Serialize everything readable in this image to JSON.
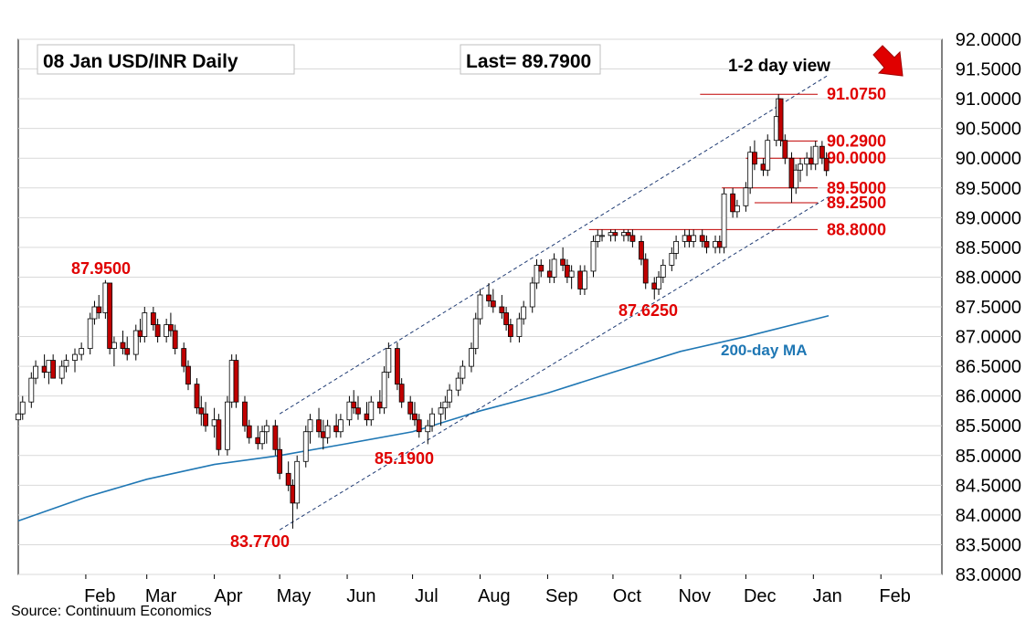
{
  "chart_data": {
    "type": "candlestick",
    "title_box": "08 Jan  USD/INR  Daily",
    "last_box": "Last= 89.7900",
    "view_label": "1-2 day view",
    "view_arrow": "down-right-arrow",
    "source": "Source: Continuum Economics",
    "y_ticks": [
      "92.0000",
      "91.5000",
      "91.0000",
      "90.5000",
      "90.0000",
      "89.5000",
      "89.0000",
      "88.5000",
      "88.0000",
      "87.5000",
      "87.0000",
      "86.5000",
      "86.0000",
      "85.5000",
      "85.0000",
      "84.5000",
      "84.0000",
      "83.5000",
      "83.0000"
    ],
    "ylim": [
      83.0,
      92.0
    ],
    "x_months": [
      "Feb",
      "Mar",
      "Apr",
      "May",
      "Jun",
      "Jul",
      "Aug",
      "Sep",
      "Oct",
      "Nov",
      "Dec",
      "Jan",
      "Feb"
    ],
    "grid": "horizontal",
    "colors": {
      "up": "#ffffff",
      "down": "#c00000",
      "outline": "#000000",
      "ma": "#1f77b4",
      "level": "#c00000",
      "channel": "#1f3b73",
      "label": "#e00000"
    },
    "levels": [
      {
        "value": 91.075,
        "label": "91.0750"
      },
      {
        "value": 90.29,
        "label": "90.2900"
      },
      {
        "value": 90.0,
        "label": "90.0000"
      },
      {
        "value": 89.5,
        "label": "89.5000"
      },
      {
        "value": 89.25,
        "label": "89.2500"
      },
      {
        "value": 88.8,
        "label": "88.8000"
      }
    ],
    "annotations": [
      {
        "text": "87.9500",
        "value": 87.95
      },
      {
        "text": "83.7700",
        "value": 83.77
      },
      {
        "text": "85.1900",
        "value": 85.19
      },
      {
        "text": "87.6250",
        "value": 87.625
      }
    ],
    "ma_label": "200-day MA",
    "ma_points": [
      [
        "2025-01-01",
        83.9
      ],
      [
        "2025-02-01",
        84.3
      ],
      [
        "2025-03-01",
        84.6
      ],
      [
        "2025-04-01",
        84.85
      ],
      [
        "2025-05-01",
        85.0
      ],
      [
        "2025-06-01",
        85.2
      ],
      [
        "2025-07-01",
        85.4
      ],
      [
        "2025-08-01",
        85.75
      ],
      [
        "2025-09-01",
        86.05
      ],
      [
        "2025-10-01",
        86.4
      ],
      [
        "2025-11-01",
        86.75
      ],
      [
        "2025-12-01",
        87.0
      ],
      [
        "2026-01-08",
        87.35
      ]
    ],
    "channel_upper": [
      [
        "2025-05-01",
        85.7
      ],
      [
        "2026-01-08",
        91.4
      ]
    ],
    "channel_lower": [
      [
        "2025-05-01",
        83.75
      ],
      [
        "2026-01-08",
        89.35
      ]
    ],
    "ohlc": [
      [
        "2025-01-01",
        85.6,
        85.8,
        85.5,
        85.7
      ],
      [
        "2025-01-03",
        85.7,
        86.0,
        85.6,
        85.9
      ],
      [
        "2025-01-07",
        85.9,
        86.4,
        85.8,
        86.3
      ],
      [
        "2025-01-09",
        86.3,
        86.6,
        86.2,
        86.5
      ],
      [
        "2025-01-13",
        86.5,
        86.7,
        86.3,
        86.4
      ],
      [
        "2025-01-15",
        86.4,
        86.6,
        86.2,
        86.6
      ],
      [
        "2025-01-17",
        86.6,
        86.7,
        86.3,
        86.3
      ],
      [
        "2025-01-21",
        86.3,
        86.6,
        86.2,
        86.5
      ],
      [
        "2025-01-23",
        86.5,
        86.7,
        86.4,
        86.6
      ],
      [
        "2025-01-27",
        86.6,
        86.8,
        86.4,
        86.7
      ],
      [
        "2025-01-30",
        86.7,
        86.9,
        86.6,
        86.8
      ],
      [
        "2025-02-03",
        86.8,
        87.4,
        86.7,
        87.3
      ],
      [
        "2025-02-05",
        87.3,
        87.6,
        87.2,
        87.5
      ],
      [
        "2025-02-07",
        87.5,
        87.7,
        87.3,
        87.4
      ],
      [
        "2025-02-10",
        87.4,
        87.95,
        87.3,
        87.9
      ],
      [
        "2025-02-12",
        87.9,
        87.9,
        86.7,
        86.8
      ],
      [
        "2025-02-14",
        86.8,
        87.0,
        86.5,
        86.9
      ],
      [
        "2025-02-18",
        86.9,
        87.1,
        86.7,
        86.8
      ],
      [
        "2025-02-20",
        86.8,
        87.0,
        86.6,
        86.7
      ],
      [
        "2025-02-24",
        86.7,
        87.2,
        86.6,
        87.1
      ],
      [
        "2025-02-26",
        87.1,
        87.3,
        86.9,
        87.0
      ],
      [
        "2025-02-28",
        87.0,
        87.5,
        86.9,
        87.4
      ],
      [
        "2025-03-04",
        87.4,
        87.5,
        87.1,
        87.2
      ],
      [
        "2025-03-06",
        87.2,
        87.3,
        86.9,
        87.0
      ],
      [
        "2025-03-10",
        87.0,
        87.3,
        86.9,
        87.2
      ],
      [
        "2025-03-12",
        87.2,
        87.4,
        87.0,
        87.1
      ],
      [
        "2025-03-14",
        87.1,
        87.2,
        86.7,
        86.8
      ],
      [
        "2025-03-18",
        86.8,
        86.9,
        86.4,
        86.5
      ],
      [
        "2025-03-20",
        86.5,
        86.6,
        86.1,
        86.2
      ],
      [
        "2025-03-24",
        86.2,
        86.3,
        85.7,
        85.8
      ],
      [
        "2025-03-26",
        85.8,
        86.0,
        85.5,
        85.7
      ],
      [
        "2025-03-28",
        85.7,
        85.9,
        85.4,
        85.5
      ],
      [
        "2025-04-01",
        85.5,
        85.8,
        85.3,
        85.6
      ],
      [
        "2025-04-03",
        85.6,
        85.7,
        85.0,
        85.1
      ],
      [
        "2025-04-07",
        85.1,
        86.0,
        85.0,
        85.9
      ],
      [
        "2025-04-09",
        85.9,
        86.7,
        85.8,
        86.6
      ],
      [
        "2025-04-11",
        86.6,
        86.7,
        85.8,
        85.9
      ],
      [
        "2025-04-15",
        85.9,
        86.0,
        85.4,
        85.5
      ],
      [
        "2025-04-17",
        85.5,
        85.6,
        85.2,
        85.3
      ],
      [
        "2025-04-21",
        85.3,
        85.5,
        85.1,
        85.2
      ],
      [
        "2025-04-23",
        85.2,
        85.5,
        85.1,
        85.4
      ],
      [
        "2025-04-25",
        85.4,
        85.6,
        85.2,
        85.5
      ],
      [
        "2025-04-29",
        85.5,
        85.6,
        85.0,
        85.1
      ],
      [
        "2025-05-01",
        85.1,
        85.3,
        84.6,
        84.7
      ],
      [
        "2025-05-05",
        84.7,
        84.9,
        84.4,
        84.5
      ],
      [
        "2025-05-07",
        84.5,
        84.6,
        83.77,
        84.2
      ],
      [
        "2025-05-09",
        84.2,
        85.0,
        84.1,
        84.9
      ],
      [
        "2025-05-13",
        84.9,
        85.5,
        84.8,
        85.4
      ],
      [
        "2025-05-15",
        85.4,
        85.7,
        85.2,
        85.6
      ],
      [
        "2025-05-19",
        85.6,
        85.8,
        85.3,
        85.4
      ],
      [
        "2025-05-21",
        85.4,
        85.6,
        85.1,
        85.3
      ],
      [
        "2025-05-23",
        85.3,
        85.6,
        85.2,
        85.5
      ],
      [
        "2025-05-27",
        85.5,
        85.7,
        85.3,
        85.4
      ],
      [
        "2025-05-29",
        85.4,
        85.7,
        85.3,
        85.6
      ],
      [
        "2025-06-02",
        85.6,
        86.0,
        85.5,
        85.9
      ],
      [
        "2025-06-04",
        85.9,
        86.1,
        85.7,
        85.8
      ],
      [
        "2025-06-06",
        85.8,
        86.0,
        85.6,
        85.7
      ],
      [
        "2025-06-10",
        85.7,
        85.9,
        85.5,
        85.6
      ],
      [
        "2025-06-12",
        85.6,
        86.0,
        85.5,
        85.9
      ],
      [
        "2025-06-16",
        85.9,
        86.1,
        85.7,
        85.8
      ],
      [
        "2025-06-18",
        85.8,
        86.5,
        85.7,
        86.4
      ],
      [
        "2025-06-20",
        86.4,
        86.9,
        86.3,
        86.8
      ],
      [
        "2025-06-24",
        86.8,
        86.9,
        86.1,
        86.2
      ],
      [
        "2025-06-26",
        86.2,
        86.3,
        85.8,
        85.9
      ],
      [
        "2025-06-30",
        85.9,
        86.0,
        85.6,
        85.7
      ],
      [
        "2025-07-02",
        85.7,
        85.9,
        85.5,
        85.6
      ],
      [
        "2025-07-04",
        85.6,
        85.7,
        85.3,
        85.4
      ],
      [
        "2025-07-08",
        85.4,
        85.6,
        85.19,
        85.5
      ],
      [
        "2025-07-10",
        85.5,
        85.8,
        85.4,
        85.7
      ],
      [
        "2025-07-14",
        85.7,
        85.9,
        85.5,
        85.8
      ],
      [
        "2025-07-16",
        85.8,
        86.0,
        85.6,
        85.9
      ],
      [
        "2025-07-18",
        85.9,
        86.2,
        85.8,
        86.1
      ],
      [
        "2025-07-22",
        86.1,
        86.4,
        86.0,
        86.3
      ],
      [
        "2025-07-24",
        86.3,
        86.6,
        86.2,
        86.5
      ],
      [
        "2025-07-28",
        86.5,
        86.9,
        86.4,
        86.8
      ],
      [
        "2025-07-30",
        86.8,
        87.4,
        86.7,
        87.3
      ],
      [
        "2025-08-01",
        87.3,
        87.8,
        87.2,
        87.7
      ],
      [
        "2025-08-05",
        87.7,
        87.9,
        87.5,
        87.6
      ],
      [
        "2025-08-07",
        87.6,
        87.8,
        87.4,
        87.5
      ],
      [
        "2025-08-11",
        87.5,
        87.7,
        87.3,
        87.4
      ],
      [
        "2025-08-13",
        87.4,
        87.5,
        87.1,
        87.2
      ],
      [
        "2025-08-15",
        87.2,
        87.3,
        86.9,
        87.0
      ],
      [
        "2025-08-19",
        87.0,
        87.4,
        86.9,
        87.3
      ],
      [
        "2025-08-21",
        87.3,
        87.6,
        87.2,
        87.5
      ],
      [
        "2025-08-25",
        87.5,
        88.0,
        87.4,
        87.9
      ],
      [
        "2025-08-27",
        87.9,
        88.3,
        87.8,
        88.2
      ],
      [
        "2025-08-29",
        88.2,
        88.3,
        88.0,
        88.1
      ],
      [
        "2025-09-02",
        88.1,
        88.3,
        87.9,
        88.0
      ],
      [
        "2025-09-04",
        88.0,
        88.4,
        87.9,
        88.3
      ],
      [
        "2025-09-08",
        88.3,
        88.5,
        88.1,
        88.2
      ],
      [
        "2025-09-10",
        88.2,
        88.3,
        87.9,
        88.0
      ],
      [
        "2025-09-12",
        88.0,
        88.2,
        87.8,
        88.1
      ],
      [
        "2025-09-16",
        88.1,
        88.2,
        87.7,
        87.8
      ],
      [
        "2025-09-18",
        87.8,
        88.2,
        87.7,
        88.1
      ],
      [
        "2025-09-22",
        88.1,
        88.7,
        88.0,
        88.6
      ],
      [
        "2025-09-24",
        88.6,
        88.8,
        88.5,
        88.7
      ],
      [
        "2025-09-26",
        88.7,
        88.8,
        88.6,
        88.7
      ],
      [
        "2025-09-30",
        88.7,
        88.8,
        88.6,
        88.75
      ],
      [
        "2025-10-02",
        88.75,
        88.8,
        88.6,
        88.7
      ],
      [
        "2025-10-06",
        88.7,
        88.8,
        88.6,
        88.75
      ],
      [
        "2025-10-08",
        88.75,
        88.8,
        88.6,
        88.7
      ],
      [
        "2025-10-10",
        88.7,
        88.8,
        88.5,
        88.6
      ],
      [
        "2025-10-14",
        88.6,
        88.7,
        88.2,
        88.3
      ],
      [
        "2025-10-16",
        88.3,
        88.4,
        87.8,
        87.9
      ],
      [
        "2025-10-20",
        87.9,
        88.0,
        87.625,
        87.8
      ],
      [
        "2025-10-22",
        87.8,
        88.1,
        87.7,
        88.0
      ],
      [
        "2025-10-24",
        88.0,
        88.3,
        87.9,
        88.2
      ],
      [
        "2025-10-28",
        88.2,
        88.5,
        88.1,
        88.4
      ],
      [
        "2025-10-30",
        88.4,
        88.7,
        88.3,
        88.6
      ],
      [
        "2025-11-03",
        88.6,
        88.8,
        88.5,
        88.7
      ],
      [
        "2025-11-05",
        88.7,
        88.8,
        88.5,
        88.6
      ],
      [
        "2025-11-07",
        88.6,
        88.8,
        88.5,
        88.7
      ],
      [
        "2025-11-11",
        88.7,
        88.8,
        88.5,
        88.6
      ],
      [
        "2025-11-13",
        88.6,
        88.7,
        88.4,
        88.5
      ],
      [
        "2025-11-17",
        88.5,
        88.7,
        88.4,
        88.6
      ],
      [
        "2025-11-19",
        88.6,
        88.7,
        88.4,
        88.5
      ],
      [
        "2025-11-21",
        88.5,
        89.5,
        88.4,
        89.4
      ],
      [
        "2025-11-25",
        89.4,
        89.5,
        89.0,
        89.1
      ],
      [
        "2025-11-27",
        89.1,
        89.3,
        89.0,
        89.2
      ],
      [
        "2025-12-01",
        89.2,
        89.6,
        89.1,
        89.5
      ],
      [
        "2025-12-03",
        89.5,
        90.2,
        89.4,
        90.1
      ],
      [
        "2025-12-05",
        90.1,
        90.3,
        89.8,
        89.9
      ],
      [
        "2025-12-09",
        89.9,
        90.0,
        89.7,
        89.8
      ],
      [
        "2025-12-11",
        89.8,
        90.4,
        89.7,
        90.3
      ],
      [
        "2025-12-15",
        90.3,
        90.8,
        90.2,
        90.7
      ],
      [
        "2025-12-16",
        90.7,
        91.075,
        90.6,
        91.0
      ],
      [
        "2025-12-17",
        91.0,
        91.0,
        90.2,
        90.3
      ],
      [
        "2025-12-19",
        90.3,
        90.4,
        89.9,
        90.0
      ],
      [
        "2025-12-22",
        90.0,
        90.1,
        89.25,
        89.5
      ],
      [
        "2025-12-24",
        89.5,
        89.9,
        89.4,
        89.8
      ],
      [
        "2025-12-26",
        89.8,
        90.0,
        89.6,
        89.9
      ],
      [
        "2025-12-29",
        89.9,
        90.1,
        89.7,
        90.0
      ],
      [
        "2025-12-31",
        90.0,
        90.2,
        89.8,
        89.9
      ],
      [
        "2026-01-02",
        89.9,
        90.29,
        89.8,
        90.2
      ],
      [
        "2026-01-05",
        90.2,
        90.29,
        89.9,
        90.0
      ],
      [
        "2026-01-07",
        90.0,
        90.1,
        89.7,
        89.79
      ]
    ]
  }
}
